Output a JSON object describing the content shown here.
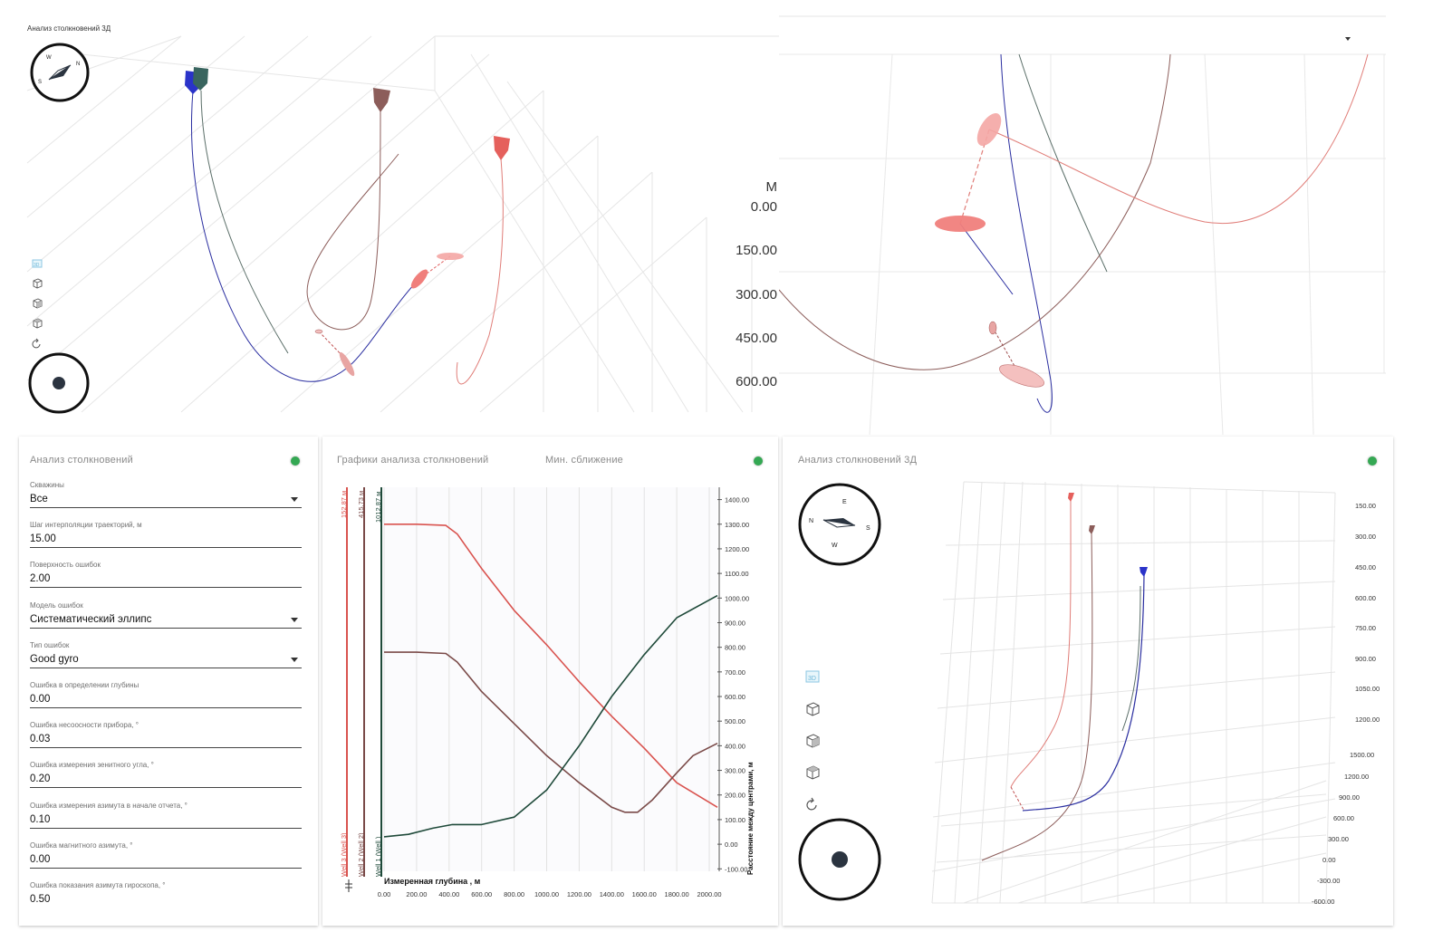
{
  "top_left_view": {
    "title": "Анализ столкновений 3Д",
    "compass": {
      "n": "N",
      "w": "W",
      "s": "S"
    },
    "depth_axis": {
      "unit": "М",
      "ticks": [
        "0.00",
        "150.00",
        "300.00",
        "450.00",
        "600.00"
      ]
    },
    "tools": [
      "3d-view-icon",
      "front-view-icon",
      "side-view-icon",
      "top-view-icon",
      "reset-view-icon"
    ]
  },
  "top_right_view": {
    "dropdown_icon": "chevron-down-icon"
  },
  "collision_panel": {
    "title": "Анализ столкновений",
    "status_color": "#34a853",
    "fields": [
      {
        "label": "Скважины",
        "value": "Все",
        "dropdown": true
      },
      {
        "label": "Шаг интерполяции траекторий, м",
        "value": "15.00",
        "dropdown": false
      },
      {
        "label": "Поверхность ошибок",
        "value": "2.00",
        "dropdown": false
      },
      {
        "label": "Модель ошибок",
        "value": "Систематический эллипс",
        "dropdown": true
      },
      {
        "label": "Тип ошибок",
        "value": "Good gyro",
        "dropdown": true
      },
      {
        "label": "Ошибка в определении глубины",
        "value": "0.00",
        "dropdown": false
      },
      {
        "label": "Ошибка несоосности прибора, °",
        "value": "0.03",
        "dropdown": false
      },
      {
        "label": "Ошибка измерения зенитного угла, °",
        "value": "0.20",
        "dropdown": false
      },
      {
        "label": "Ошибка измерения азимута в начале отчета, °",
        "value": "0.10",
        "dropdown": false
      },
      {
        "label": "Ошибка магнитного азимута, °",
        "value": "0.00",
        "dropdown": false
      },
      {
        "label": "Ошибка показания азимута гироскопа, °",
        "value": "0.50",
        "dropdown": false
      }
    ]
  },
  "charts_panel": {
    "title": "Графики анализа столкновений",
    "subtitle": "Мин. сближение",
    "status_color": "#34a853",
    "wells": [
      {
        "name": "Well 3 (Well 3)",
        "distance": "152.87 м",
        "color": "#d9534f"
      },
      {
        "name": "Well 2 (Well 2)",
        "distance": "415.73 м",
        "color": "#7a4a48"
      },
      {
        "name": "Well 1 (Well )",
        "distance": "1012.87 м",
        "color": "#1f4a3a"
      }
    ],
    "chart_data": {
      "type": "line",
      "xlabel": "Измеренная глубина , м",
      "ylabel": "Расстояние между центрами, м",
      "x_ticks": [
        "0.00",
        "200.00",
        "400.00",
        "600.00",
        "800.00",
        "1000.00",
        "1200.00",
        "1400.00",
        "1600.00",
        "1800.00",
        "2000.00"
      ],
      "y_ticks": [
        "1400.00",
        "1300.00",
        "1200.00",
        "1100.00",
        "1000.00",
        "900.00",
        "800.00",
        "700.00",
        "600.00",
        "500.00",
        "400.00",
        "300.00",
        "200.00",
        "100.00",
        "0.00",
        "-100.00"
      ],
      "xlim": [
        0,
        2050
      ],
      "ylim": [
        -110,
        1450
      ],
      "series": [
        {
          "color": "#d9534f",
          "points": [
            [
              0,
              1300
            ],
            [
              200,
              1300
            ],
            [
              380,
              1295
            ],
            [
              450,
              1260
            ],
            [
              600,
              1120
            ],
            [
              800,
              950
            ],
            [
              1000,
              810
            ],
            [
              1200,
              660
            ],
            [
              1400,
              520
            ],
            [
              1600,
              390
            ],
            [
              1800,
              250
            ],
            [
              2050,
              150
            ]
          ]
        },
        {
          "color": "#7a4a48",
          "points": [
            [
              0,
              780
            ],
            [
              200,
              780
            ],
            [
              380,
              775
            ],
            [
              450,
              740
            ],
            [
              600,
              620
            ],
            [
              800,
              490
            ],
            [
              1000,
              360
            ],
            [
              1200,
              250
            ],
            [
              1400,
              150
            ],
            [
              1480,
              130
            ],
            [
              1560,
              130
            ],
            [
              1650,
              180
            ],
            [
              1800,
              290
            ],
            [
              1900,
              360
            ],
            [
              2050,
              410
            ]
          ]
        },
        {
          "color": "#1f4a3a",
          "points": [
            [
              0,
              30
            ],
            [
              150,
              40
            ],
            [
              300,
              65
            ],
            [
              420,
              80
            ],
            [
              600,
              80
            ],
            [
              800,
              110
            ],
            [
              1000,
              220
            ],
            [
              1200,
              400
            ],
            [
              1400,
              600
            ],
            [
              1600,
              770
            ],
            [
              1800,
              920
            ],
            [
              2050,
              1010
            ]
          ]
        }
      ]
    }
  },
  "bottom_right_view": {
    "title": "Анализ столкновений 3Д",
    "status_color": "#34a853",
    "compass": {
      "n": "N",
      "e": "E",
      "s": "S",
      "w": "W"
    },
    "right_ticks": [
      "150.00",
      "300.00",
      "450.00",
      "600.00",
      "750.00",
      "900.00",
      "1050.00",
      "1200.00"
    ],
    "bottom_ticks": [
      "1500.00",
      "1200.00",
      "900.00",
      "600.00",
      "300.00",
      "0.00",
      "-300.00",
      "-600.00"
    ],
    "tools": [
      "3d-view-icon",
      "front-view-icon",
      "side-view-icon",
      "top-view-icon",
      "reset-view-icon"
    ]
  }
}
